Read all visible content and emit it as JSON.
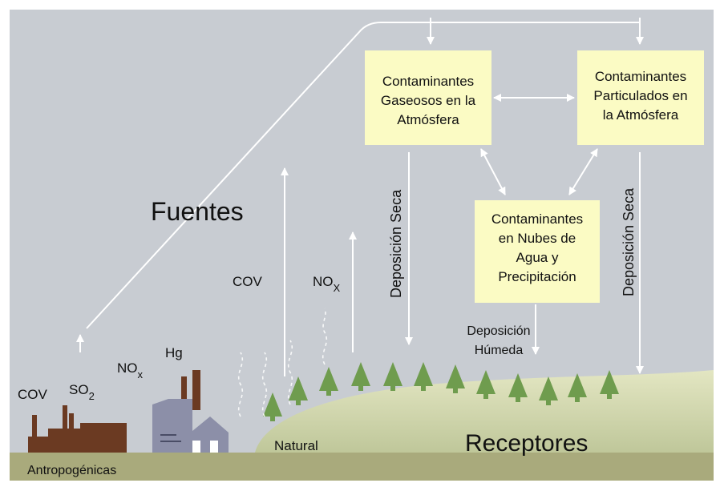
{
  "heading": "Fuentes",
  "boxes": [
    {
      "lines": [
        "Contaminantes",
        "Gaseosos en la",
        "Atmósfera"
      ]
    },
    {
      "lines": [
        "Contaminantes",
        "Particulados en",
        "la Atmósfera"
      ]
    },
    {
      "lines": [
        "Contaminantes",
        "en Nubes de",
        "Agua y",
        "Precipitación"
      ]
    }
  ],
  "dry_deposition": [
    "Deposición Seca",
    "Deposición Seca"
  ],
  "wet_deposition": [
    "Deposición",
    "Húmeda"
  ],
  "natural_emissions": {
    "cov": "COV",
    "nox": {
      "text": "NO",
      "sub": "X"
    }
  },
  "anthropogenic_emissions": {
    "cov": "COV",
    "so2": {
      "text": "SO",
      "sub": "2"
    },
    "nox": {
      "text": "NO",
      "sub": "x"
    },
    "hg": "Hg"
  },
  "natural": "Natural",
  "receptors": "Receptores",
  "anthropogenic": "Antropogénicas"
}
